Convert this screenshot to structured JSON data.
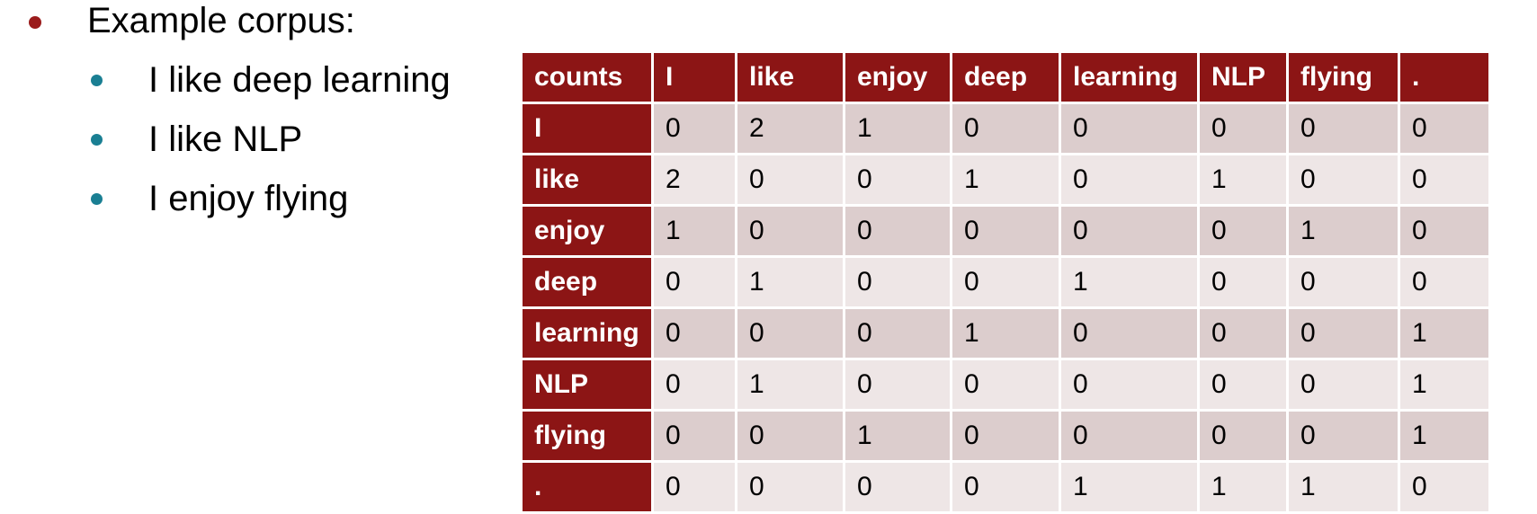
{
  "colors": {
    "header_bg": "#8c1515",
    "row_odd_bg": "#dccdcd",
    "row_even_bg": "#eee6e6",
    "bullet_level1": "#9b1c1c",
    "bullet_level2": "#1a7f93"
  },
  "bullets": {
    "title": "Example corpus:",
    "items": [
      "I like deep learning",
      "I like NLP",
      "I enjoy flying"
    ]
  },
  "table": {
    "corner_label": "counts",
    "column_headers": [
      "I",
      "like",
      "enjoy",
      "deep",
      "learning",
      "NLP",
      "flying",
      "."
    ],
    "rows": [
      {
        "label": "I",
        "values": [
          "0",
          "2",
          "1",
          "0",
          "0",
          "0",
          "0",
          "0"
        ]
      },
      {
        "label": "like",
        "values": [
          "2",
          "0",
          "0",
          "1",
          "0",
          "1",
          "0",
          "0"
        ]
      },
      {
        "label": "enjoy",
        "values": [
          "1",
          "0",
          "0",
          "0",
          "0",
          "0",
          "1",
          "0"
        ]
      },
      {
        "label": "deep",
        "values": [
          "0",
          "1",
          "0",
          "0",
          "1",
          "0",
          "0",
          "0"
        ]
      },
      {
        "label": "learning",
        "values": [
          "0",
          "0",
          "0",
          "1",
          "0",
          "0",
          "0",
          "1"
        ]
      },
      {
        "label": "NLP",
        "values": [
          "0",
          "1",
          "0",
          "0",
          "0",
          "0",
          "0",
          "1"
        ]
      },
      {
        "label": "flying",
        "values": [
          "0",
          "0",
          "1",
          "0",
          "0",
          "0",
          "0",
          "1"
        ]
      },
      {
        "label": ".",
        "values": [
          "0",
          "0",
          "0",
          "0",
          "1",
          "1",
          "1",
          "0"
        ]
      }
    ]
  }
}
